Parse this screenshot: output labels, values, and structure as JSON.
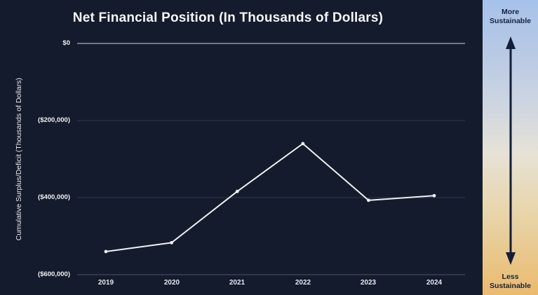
{
  "header": {
    "title": "Net Financial Position (In Thousands of Dollars)"
  },
  "chart_data": {
    "type": "line",
    "title": "Net Financial Position (In Thousands of Dollars)",
    "xlabel": "",
    "ylabel": "Cumulative Surplus/Deficit (Thousands of Dollars)",
    "categories": [
      "2019",
      "2020",
      "2021",
      "2022",
      "2023",
      "2024"
    ],
    "series": [
      {
        "name": "Net Financial Position",
        "values": [
          -540000,
          -517000,
          -384000,
          -260000,
          -407000,
          -395000
        ]
      }
    ],
    "ylim": [
      -600000,
      0
    ],
    "yticks": [
      {
        "value": 0,
        "label": "$0"
      },
      {
        "value": -200000,
        "label": "($200,000)"
      },
      {
        "value": -400000,
        "label": "($400,000)"
      },
      {
        "value": -600000,
        "label": "($600,000)"
      }
    ],
    "grid": true,
    "legend": false,
    "markers": true
  },
  "sidebar": {
    "top_label": "More\nSustainable",
    "bottom_label": "Less\nSustainable",
    "arrow_icon": "double-headed-vertical-arrow"
  },
  "colors": {
    "background": "#141b2c",
    "line": "#eef0f3",
    "marker": "#eef0f3",
    "zero_line": "#cfd4dc",
    "axis_line": "#4a5468",
    "gridline": "#2c3750",
    "axis_text": "#e8eaee",
    "sidebar_text": "#16233e",
    "arrow": "#131e38",
    "gradient_top": "#a6c2ea",
    "gradient_mid": "#e6e2d6",
    "gradient_bottom": "#eaba6e"
  }
}
